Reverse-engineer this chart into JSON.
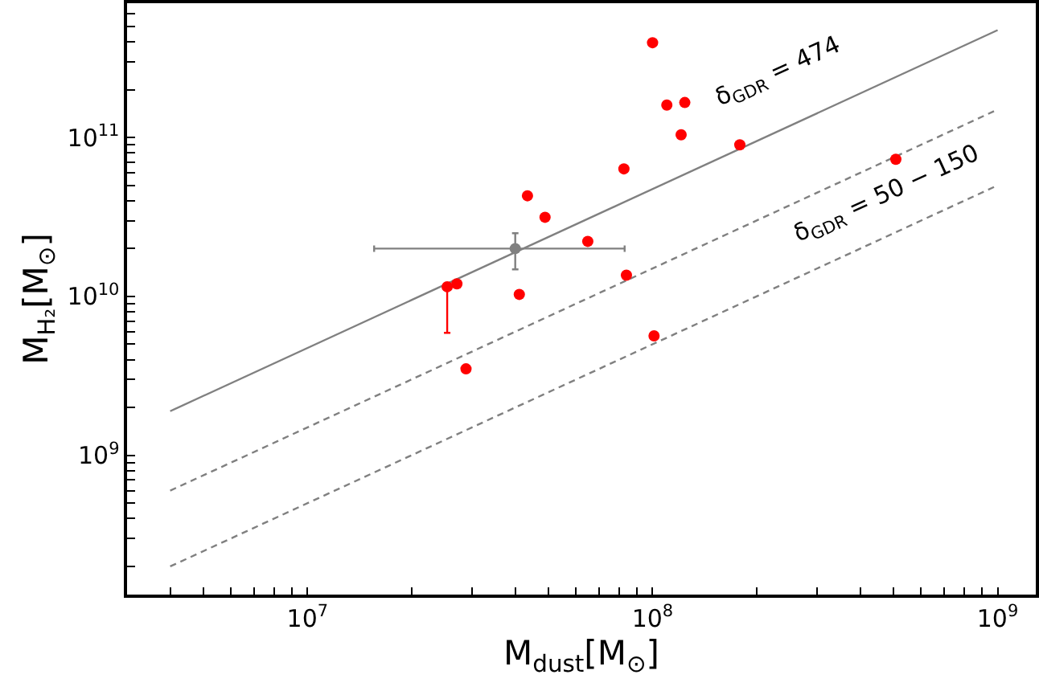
{
  "chart_data": {
    "type": "scatter",
    "xlabel": "M$_{dust}$[M$_{⊙}$]",
    "ylabel": "M$_{H₂}$[M$_{⊙}$]",
    "log": "xy",
    "marker": "circle",
    "xlim": [
      3000000.0,
      1290000000.0
    ],
    "ylim": [
      133000000.0,
      700000000000.0
    ],
    "xticks": [
      {
        "value": 4000000.0,
        "label": null
      },
      {
        "value": 5000000.0,
        "label": null
      },
      {
        "value": 6000000.0,
        "label": null
      },
      {
        "value": 7000000.0,
        "label": null
      },
      {
        "value": 8000000.0,
        "label": null
      },
      {
        "value": 9000000.0,
        "label": null
      },
      {
        "value": 10000000.0,
        "label": "10$^{7}$"
      },
      {
        "value": 20000000.0,
        "label": null
      },
      {
        "value": 30000000.0,
        "label": null
      },
      {
        "value": 40000000.0,
        "label": null
      },
      {
        "value": 50000000.0,
        "label": null
      },
      {
        "value": 60000000.0,
        "label": null
      },
      {
        "value": 70000000.0,
        "label": null
      },
      {
        "value": 80000000.0,
        "label": null
      },
      {
        "value": 90000000.0,
        "label": null
      },
      {
        "value": 100000000.0,
        "label": "10$^{8}$"
      },
      {
        "value": 200000000.0,
        "label": null
      },
      {
        "value": 300000000.0,
        "label": null
      },
      {
        "value": 400000000.0,
        "label": null
      },
      {
        "value": 500000000.0,
        "label": null
      },
      {
        "value": 600000000.0,
        "label": null
      },
      {
        "value": 700000000.0,
        "label": null
      },
      {
        "value": 800000000.0,
        "label": null
      },
      {
        "value": 900000000.0,
        "label": null
      },
      {
        "value": 1000000000.0,
        "label": "10$^{9}$"
      }
    ],
    "yticks": [
      {
        "value": 200000000.0,
        "label": null
      },
      {
        "value": 300000000.0,
        "label": null
      },
      {
        "value": 400000000.0,
        "label": null
      },
      {
        "value": 500000000.0,
        "label": null
      },
      {
        "value": 600000000.0,
        "label": null
      },
      {
        "value": 700000000.0,
        "label": null
      },
      {
        "value": 800000000.0,
        "label": null
      },
      {
        "value": 900000000.0,
        "label": null
      },
      {
        "value": 1000000000.0,
        "label": "10$^{9}$"
      },
      {
        "value": 2000000000.0,
        "label": null
      },
      {
        "value": 3000000000.0,
        "label": null
      },
      {
        "value": 4000000000.0,
        "label": null
      },
      {
        "value": 5000000000.0,
        "label": null
      },
      {
        "value": 6000000000.0,
        "label": null
      },
      {
        "value": 7000000000.0,
        "label": null
      },
      {
        "value": 8000000000.0,
        "label": null
      },
      {
        "value": 9000000000.0,
        "label": null
      },
      {
        "value": 10000000000.0,
        "label": "10$^{10}$"
      },
      {
        "value": 20000000000.0,
        "label": null
      },
      {
        "value": 30000000000.0,
        "label": null
      },
      {
        "value": 40000000000.0,
        "label": null
      },
      {
        "value": 50000000000.0,
        "label": null
      },
      {
        "value": 60000000000.0,
        "label": null
      },
      {
        "value": 70000000000.0,
        "label": null
      },
      {
        "value": 80000000000.0,
        "label": null
      },
      {
        "value": 90000000000.0,
        "label": null
      },
      {
        "value": 100000000000.0,
        "label": "10$^{11}$"
      },
      {
        "value": 200000000000.0,
        "label": null
      },
      {
        "value": 300000000000.0,
        "label": null
      },
      {
        "value": 400000000000.0,
        "label": null
      },
      {
        "value": 500000000000.0,
        "label": null
      },
      {
        "value": 600000000000.0,
        "label": null
      },
      {
        "value": 700000000000.0,
        "label": null
      }
    ],
    "series": [
      {
        "type": "line",
        "color": "#808080",
        "line_style": "solid",
        "marker": "none",
        "x": [
          4000000.0,
          1000000000.0
        ],
        "values": [
          1896000000.0,
          474000000000.0
        ]
      },
      {
        "type": "line",
        "color": "#808080",
        "line_style": "dashed",
        "marker": "none",
        "x": [
          4000000.0,
          1000000000.0
        ],
        "values": [
          600000000.0,
          150000000000.0
        ]
      },
      {
        "type": "line",
        "color": "#808080",
        "line_style": "dashed",
        "marker": "none",
        "x": [
          4000000.0,
          1000000000.0
        ],
        "values": [
          200000000.0,
          50000000000.0
        ]
      },
      {
        "color": "#ff0000",
        "x": [
          25400000.0,
          27100000.0,
          28800000.0,
          41100000.0,
          43400000.0,
          48800000.0,
          64900000.0,
          82600000.0,
          84000000.0,
          100000000.0,
          101000000.0,
          110000000.0,
          124000000.0,
          121000000.0,
          179000000.0,
          507000000.0
        ],
        "values": [
          11500000000.0,
          12000000000.0,
          3500000000.0,
          10300000000.0,
          43000000000.0,
          31500000000.0,
          22200000000.0,
          63500000000.0,
          13600000000.0,
          395000000000.0,
          5650000000.0,
          160000000000.0,
          166000000000.0,
          104000000000.0,
          90000000000.0,
          73000000000.0
        ],
        "errors": [
          [
            5900000000.0,
            11500000000.0
          ],
          null,
          null,
          null,
          null,
          null,
          null,
          null,
          null,
          null,
          null,
          null,
          null,
          null,
          null,
          null
        ]
      },
      {
        "color": "#808080",
        "x": [
          40000000.0
        ],
        "values": [
          20000000000.0
        ],
        "errors": [
          [
            14800000000.0,
            25000000000.0
          ]
        ],
        "xerrors": [
          [
            15600000.0,
            83000000.0
          ]
        ]
      }
    ],
    "annotations": [
      "δ$_{GDR}$ = 474",
      "δ$_{GDR}$ = 50 − 150"
    ]
  }
}
